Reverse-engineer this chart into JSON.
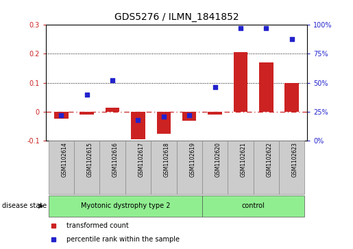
{
  "title": "GDS5276 / ILMN_1841852",
  "samples": [
    "GSM1102614",
    "GSM1102615",
    "GSM1102616",
    "GSM1102617",
    "GSM1102618",
    "GSM1102619",
    "GSM1102620",
    "GSM1102621",
    "GSM1102622",
    "GSM1102623"
  ],
  "transformed_count": [
    -0.025,
    -0.01,
    0.015,
    -0.095,
    -0.075,
    -0.03,
    -0.01,
    0.205,
    0.17,
    0.1
  ],
  "percentile_rank": [
    22,
    40,
    52,
    18,
    21,
    22,
    46,
    97,
    97,
    88
  ],
  "groups": [
    {
      "label": "Myotonic dystrophy type 2",
      "n": 6,
      "color": "#90ee90"
    },
    {
      "label": "control",
      "n": 4,
      "color": "#90ee90"
    }
  ],
  "disease_state_label": "disease state",
  "bar_color": "#cc2222",
  "dot_color": "#2222cc",
  "ylim_left": [
    -0.1,
    0.3
  ],
  "ylim_right": [
    0,
    100
  ],
  "yticks_left": [
    -0.1,
    0.0,
    0.1,
    0.2,
    0.3
  ],
  "yticks_right": [
    0,
    25,
    50,
    75,
    100
  ],
  "legend_items": [
    {
      "label": "transformed count",
      "color": "#cc2222"
    },
    {
      "label": "percentile rank within the sample",
      "color": "#2222cc"
    }
  ],
  "hlines": [
    0.1,
    0.2
  ],
  "hline_zero_color": "#cc2222",
  "background_color": "#ffffff",
  "plot_bg_color": "#ffffff",
  "label_bg_color": "#cccccc",
  "figsize": [
    5.15,
    3.63
  ],
  "dpi": 100
}
